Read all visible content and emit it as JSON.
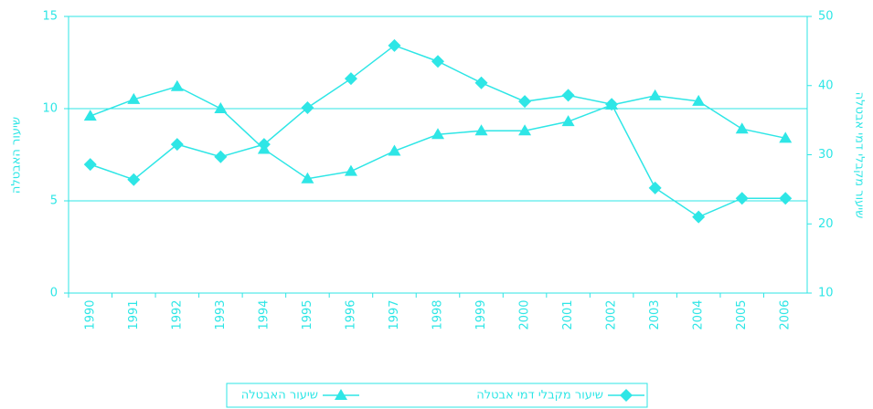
{
  "chart_data": {
    "type": "line",
    "y_label": "שיעור האבטלה",
    "y2_label": "שיעור מקבלי דמי אבטלה",
    "categories": [
      "1990",
      "1991",
      "1992",
      "1993",
      "1994",
      "1995",
      "1996",
      "1997",
      "1998",
      "1999",
      "2000",
      "2001",
      "2002",
      "2003",
      "2004",
      "2005",
      "2006"
    ],
    "series": [
      {
        "name": "שיעור האבטלה",
        "color": "#2ee6e6",
        "marker": "triangle",
        "axis": "y",
        "values": [
          9.6,
          10.5,
          11.2,
          10.0,
          7.8,
          6.2,
          6.6,
          7.7,
          8.6,
          8.8,
          8.8,
          9.3,
          10.2,
          10.7,
          10.4,
          8.9,
          8.4
        ]
      },
      {
        "name": "שיעור מקבלי דמי אבטלה",
        "color": "#2ee6e6",
        "marker": "diamond",
        "axis": "y2",
        "values": [
          28.6,
          26.4,
          31.5,
          29.7,
          31.5,
          36.8,
          41.0,
          45.8,
          43.5,
          40.4,
          37.7,
          38.6,
          37.3,
          25.2,
          21.0,
          23.7,
          23.7
        ]
      }
    ],
    "ylim": [
      0,
      15
    ],
    "yticks": [
      0,
      5,
      10,
      15
    ],
    "y2lim": [
      10,
      50
    ],
    "y2ticks": [
      10,
      20,
      30,
      40,
      50
    ],
    "grid": true,
    "legend": "bottom"
  }
}
